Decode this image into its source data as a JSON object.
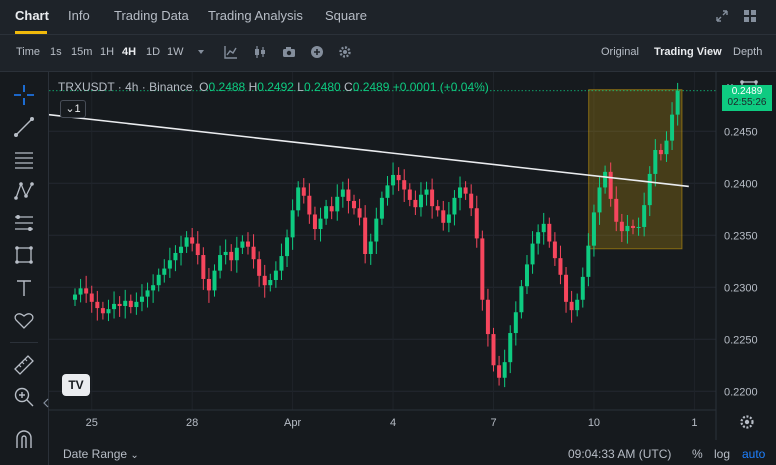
{
  "top_tabs": [
    "Chart",
    "Info",
    "Trading Data",
    "Trading Analysis",
    "Square"
  ],
  "toolbar": {
    "time_label": "Time",
    "intervals": [
      "1s",
      "15m",
      "1H",
      "4H",
      "1D",
      "1W"
    ],
    "active_interval": "4H",
    "views": [
      "Original",
      "Trading View",
      "Depth"
    ],
    "active_view": "Trading View"
  },
  "legend": {
    "symbol": "TRXUSDT · 4h · Binance",
    "open_label": "O",
    "open": "0.2488",
    "high_label": "H",
    "high": "0.2492",
    "low_label": "L",
    "low": "0.2480",
    "close_label": "C",
    "close": "0.2489",
    "change": "+0.0001 (+0.04%)",
    "collapse_count": "1"
  },
  "price_label": {
    "price": "0.2489",
    "countdown": "02:55:26"
  },
  "bottom_bar": {
    "date_range": "Date Range",
    "clock": "09:04:33 AM (UTC)",
    "percent": "%",
    "log": "log",
    "auto": "auto"
  },
  "colors": {
    "up": "#0ecb81",
    "down": "#f6465d",
    "accent": "#f0b90b",
    "background": "#161a1e"
  },
  "chart_data": {
    "type": "candlestick",
    "y_ticks": [
      "0.2450",
      "0.2400",
      "0.2350",
      "0.2300",
      "0.2250",
      "0.2200"
    ],
    "ylim": [
      0.2182,
      0.2507
    ],
    "x_ticks": [
      {
        "label": "25",
        "index": 3
      },
      {
        "label": "28",
        "index": 21
      },
      {
        "label": "Apr",
        "index": 39
      },
      {
        "label": "4",
        "index": 57
      },
      {
        "label": "7",
        "index": 75
      },
      {
        "label": "10",
        "index": 93
      },
      {
        "label": "1",
        "index": 111
      }
    ],
    "candles_close": [
      0.2293,
      0.2299,
      0.2294,
      0.2286,
      0.228,
      0.2275,
      0.2279,
      0.2284,
      0.2282,
      0.2287,
      0.2281,
      0.2286,
      0.2291,
      0.2297,
      0.2302,
      0.2312,
      0.2318,
      0.2326,
      0.2333,
      0.2339,
      0.2348,
      0.2342,
      0.2331,
      0.2308,
      0.2297,
      0.2316,
      0.2331,
      0.2334,
      0.2326,
      0.2338,
      0.2344,
      0.2339,
      0.2327,
      0.2311,
      0.2302,
      0.2307,
      0.2316,
      0.233,
      0.2348,
      0.2374,
      0.2396,
      0.2388,
      0.237,
      0.2356,
      0.2366,
      0.2378,
      0.2373,
      0.2387,
      0.2394,
      0.2383,
      0.2376,
      0.2367,
      0.2332,
      0.2344,
      0.2366,
      0.2386,
      0.2398,
      0.2408,
      0.2403,
      0.2394,
      0.2384,
      0.2377,
      0.2389,
      0.2394,
      0.2378,
      0.2374,
      0.2362,
      0.237,
      0.2386,
      0.2396,
      0.239,
      0.2376,
      0.2347,
      0.2288,
      0.2255,
      0.2225,
      0.2213,
      0.2228,
      0.2256,
      0.2276,
      0.2301,
      0.2322,
      0.2342,
      0.2353,
      0.2361,
      0.2344,
      0.2328,
      0.2312,
      0.2286,
      0.2278,
      0.2288,
      0.231,
      0.234,
      0.2372,
      0.2396,
      0.2411,
      0.2385,
      0.2363,
      0.2354,
      0.2359,
      0.2357,
      0.2358,
      0.2379,
      0.2409,
      0.2432,
      0.2428,
      0.2441,
      0.2466,
      0.2489
    ],
    "trendline": {
      "from": [
        0,
        0.2466
      ],
      "to": [
        110,
        0.2397
      ]
    },
    "highlight_box": {
      "index_from": 96,
      "index_to": 112,
      "price_from": 0.2337,
      "price_to": 0.249
    },
    "last_price": 0.2489
  }
}
